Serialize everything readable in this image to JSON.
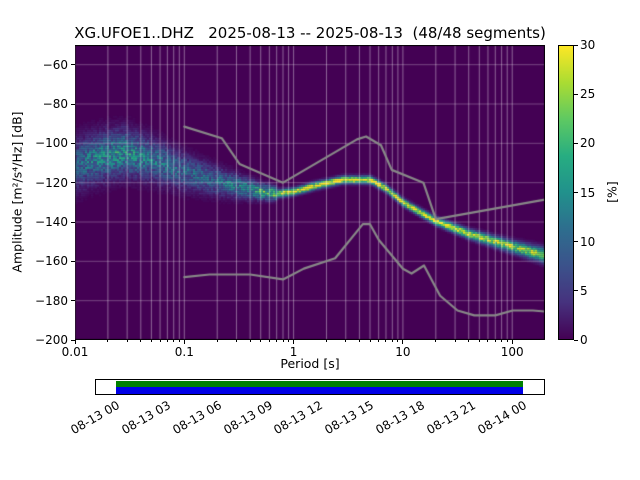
{
  "chart_data": {
    "type": "heatmap",
    "title": "XG.UFOE1..DHZ   2025-08-13 -- 2025-08-13  (48/48 segments)",
    "xlabel": "Period [s]",
    "ylabel": "Amplitude [m²/s⁴/Hz] [dB]",
    "xscale": "log",
    "xlim": [
      0.01,
      199.5
    ],
    "ylim": [
      -200,
      -50
    ],
    "xticks": [
      0.01,
      0.1,
      1,
      10,
      100
    ],
    "xtick_labels": [
      "0.01",
      "0.1",
      "1",
      "10",
      "100"
    ],
    "yticks": [
      -60,
      -80,
      -100,
      -120,
      -140,
      -160,
      -180,
      -200
    ],
    "ytick_labels": [
      "−60",
      "−80",
      "−100",
      "−120",
      "−140",
      "−160",
      "−180",
      "−200"
    ],
    "grid": true,
    "background_color": "#440154",
    "grid_color": "rgba(255,255,255,0.5)",
    "colorbar": {
      "label": "[%]",
      "min": 0,
      "max": 30,
      "ticks": [
        0,
        5,
        10,
        15,
        20,
        25,
        30
      ],
      "tick_labels": [
        "0",
        "5",
        "10",
        "15",
        "20",
        "25",
        "30"
      ],
      "colormap": "viridis",
      "stops": [
        [
          0,
          "#440154"
        ],
        [
          0.125,
          "#46327e"
        ],
        [
          0.25,
          "#3b528b"
        ],
        [
          0.375,
          "#2e6e8e"
        ],
        [
          0.5,
          "#21918c"
        ],
        [
          0.625,
          "#27ad81"
        ],
        [
          0.75,
          "#5ec962"
        ],
        [
          0.875,
          "#aadc32"
        ],
        [
          1,
          "#fde725"
        ]
      ]
    },
    "psd_distribution": {
      "units": "rows are [log10_period_s, center_dB, sigma_dB, peak_percent]",
      "short_period_cloud": {
        "points": [
          [
            -2.0,
            -111.0,
            8.0,
            9
          ],
          [
            -1.8,
            -107.0,
            7.5,
            13
          ],
          [
            -1.55,
            -104.5,
            7.0,
            15
          ],
          [
            -1.3,
            -108.0,
            6.5,
            12
          ],
          [
            -1.0,
            -114.5,
            5.5,
            10
          ],
          [
            -0.75,
            -118.5,
            4.5,
            10
          ],
          [
            -0.5,
            -122.0,
            3.5,
            13
          ],
          [
            -0.3,
            -124.5,
            2.5,
            18
          ],
          [
            -0.15,
            -125.5,
            2.0,
            22
          ]
        ]
      },
      "mode_line": {
        "points": [
          [
            -0.15,
            -125.5,
            1.3,
            26
          ],
          [
            0.0,
            -124.5,
            1.2,
            29
          ],
          [
            0.2,
            -121.5,
            1.2,
            30
          ],
          [
            0.45,
            -118.5,
            1.2,
            30
          ],
          [
            0.7,
            -118.5,
            1.2,
            30
          ],
          [
            0.85,
            -123.0,
            1.2,
            30
          ],
          [
            1.0,
            -130.0,
            1.2,
            30
          ],
          [
            1.3,
            -139.5,
            1.3,
            29
          ],
          [
            1.6,
            -146.0,
            1.5,
            28
          ],
          [
            2.0,
            -152.5,
            1.9,
            26
          ],
          [
            2.3,
            -157.0,
            2.4,
            24
          ]
        ]
      }
    },
    "noise_models": {
      "color": "#888888",
      "nhnm": [
        [
          0.1,
          -91.5
        ],
        [
          0.22,
          -97.4
        ],
        [
          0.32,
          -110.5
        ],
        [
          0.8,
          -120.0
        ],
        [
          3.8,
          -98.0
        ],
        [
          4.6,
          -96.5
        ],
        [
          6.3,
          -101.0
        ],
        [
          7.9,
          -113.5
        ],
        [
          15.4,
          -120.0
        ],
        [
          20.0,
          -138.5
        ],
        [
          199.0,
          -128.6
        ]
      ],
      "nlnm": [
        [
          0.1,
          -168.0
        ],
        [
          0.17,
          -166.7
        ],
        [
          0.4,
          -166.7
        ],
        [
          0.8,
          -169.2
        ],
        [
          1.24,
          -163.7
        ],
        [
          2.4,
          -158.4
        ],
        [
          4.3,
          -141.1
        ],
        [
          5.0,
          -141.1
        ],
        [
          6.0,
          -149.0
        ],
        [
          10.0,
          -163.8
        ],
        [
          12.0,
          -166.2
        ],
        [
          15.6,
          -162.1
        ],
        [
          21.9,
          -177.5
        ],
        [
          31.6,
          -185.0
        ],
        [
          45.0,
          -187.5
        ],
        [
          70.0,
          -187.5
        ],
        [
          101.0,
          -185.0
        ],
        [
          154.0,
          -185.0
        ],
        [
          199.0,
          -185.5
        ]
      ]
    }
  },
  "timeline": {
    "labels": [
      "08-13 00",
      "08-13 03",
      "08-13 06",
      "08-13 09",
      "08-13 12",
      "08-13 15",
      "08-13 18",
      "08-13 21",
      "08-14 00"
    ],
    "bar_colors": {
      "top": "#008000",
      "bottom": "#0000e6"
    },
    "coverage": {
      "start_frac": 0.044,
      "end_frac": 0.949
    }
  }
}
